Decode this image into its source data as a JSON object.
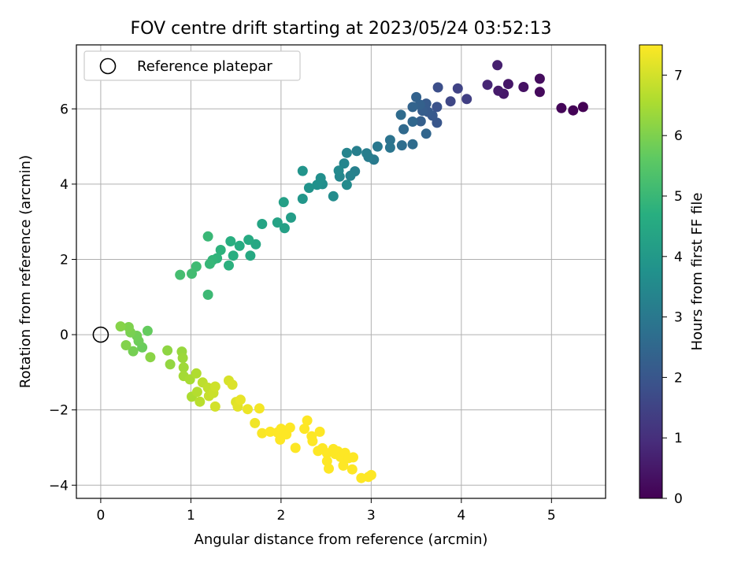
{
  "chart_data": {
    "type": "scatter",
    "title": "FOV centre drift starting at 2023/05/24 03:52:13",
    "xlabel": "Angular distance from reference (arcmin)",
    "ylabel": "Rotation from reference (arcmin)",
    "colorbar_label": "Hours from first FF file",
    "xlim": [
      -0.27,
      5.6
    ],
    "ylim": [
      -4.35,
      7.7
    ],
    "x_ticks": [
      0,
      1,
      2,
      3,
      4,
      5
    ],
    "y_ticks": [
      -4,
      -2,
      0,
      2,
      4,
      6
    ],
    "colorbar_ticks": [
      0,
      1,
      2,
      3,
      4,
      5,
      6,
      7
    ],
    "colorbar_range": [
      0,
      7.5
    ],
    "colormap": "viridis",
    "grid": true,
    "legend": {
      "placement": "top-left",
      "label": "Reference platepar"
    },
    "reference_point": {
      "x": 0,
      "y": 0
    },
    "points": [
      [
        5.35,
        6.05,
        0.0
      ],
      [
        5.24,
        5.96,
        0.05
      ],
      [
        5.11,
        6.02,
        0.1
      ],
      [
        4.87,
        6.45,
        0.2
      ],
      [
        4.87,
        6.8,
        0.25
      ],
      [
        4.69,
        6.58,
        0.35
      ],
      [
        4.52,
        6.66,
        0.45
      ],
      [
        4.47,
        6.4,
        0.5
      ],
      [
        4.41,
        6.48,
        0.55
      ],
      [
        4.4,
        7.16,
        0.65
      ],
      [
        4.29,
        6.64,
        0.8
      ],
      [
        4.06,
        6.26,
        1.4
      ],
      [
        3.96,
        6.54,
        1.5
      ],
      [
        3.88,
        6.2,
        1.6
      ],
      [
        3.74,
        6.57,
        1.8
      ],
      [
        3.73,
        6.05,
        1.9
      ],
      [
        3.73,
        5.63,
        2.0
      ],
      [
        3.68,
        5.82,
        2.05
      ],
      [
        3.63,
        5.92,
        2.1
      ],
      [
        3.61,
        6.14,
        2.15
      ],
      [
        3.57,
        5.95,
        2.2
      ],
      [
        3.55,
        5.67,
        2.25
      ],
      [
        3.54,
        6.11,
        2.3
      ],
      [
        3.5,
        6.31,
        2.35
      ],
      [
        3.46,
        6.05,
        2.4
      ],
      [
        3.61,
        5.34,
        2.45
      ],
      [
        3.46,
        5.66,
        2.5
      ],
      [
        3.36,
        5.46,
        2.55
      ],
      [
        3.33,
        5.84,
        2.6
      ],
      [
        3.46,
        5.06,
        2.65
      ],
      [
        3.34,
        5.03,
        2.7
      ],
      [
        3.21,
        5.17,
        2.85
      ],
      [
        3.21,
        4.97,
        2.9
      ],
      [
        3.07,
        5.0,
        3.0
      ],
      [
        3.03,
        4.65,
        3.05
      ],
      [
        2.97,
        4.72,
        3.1
      ],
      [
        2.95,
        4.82,
        3.15
      ],
      [
        2.84,
        4.88,
        3.2
      ],
      [
        2.82,
        4.34,
        3.25
      ],
      [
        2.77,
        4.22,
        3.3
      ],
      [
        2.73,
        4.83,
        3.35
      ],
      [
        2.7,
        4.55,
        3.4
      ],
      [
        2.65,
        4.2,
        3.45
      ],
      [
        2.64,
        4.36,
        3.5
      ],
      [
        2.73,
        3.98,
        3.55
      ],
      [
        2.58,
        3.68,
        3.6
      ],
      [
        2.46,
        4.0,
        3.65
      ],
      [
        2.44,
        4.16,
        3.7
      ],
      [
        2.4,
        3.98,
        3.75
      ],
      [
        2.31,
        3.9,
        3.8
      ],
      [
        2.24,
        4.35,
        3.85
      ],
      [
        2.24,
        3.61,
        3.9
      ],
      [
        2.11,
        3.11,
        4.15
      ],
      [
        2.03,
        3.52,
        4.2
      ],
      [
        2.04,
        2.83,
        4.25
      ],
      [
        1.96,
        2.98,
        4.3
      ],
      [
        1.79,
        2.94,
        4.35
      ],
      [
        1.72,
        2.4,
        4.45
      ],
      [
        1.66,
        2.1,
        4.5
      ],
      [
        1.64,
        2.52,
        4.55
      ],
      [
        1.54,
        2.36,
        4.6
      ],
      [
        1.47,
        2.1,
        4.65
      ],
      [
        1.44,
        2.48,
        4.7
      ],
      [
        1.42,
        1.84,
        4.75
      ],
      [
        1.33,
        2.25,
        4.8
      ],
      [
        1.29,
        2.03,
        4.85
      ],
      [
        1.24,
        1.98,
        4.9
      ],
      [
        1.21,
        1.88,
        4.95
      ],
      [
        1.19,
        2.61,
        5.0
      ],
      [
        1.19,
        1.06,
        5.05
      ],
      [
        1.06,
        1.81,
        5.1
      ],
      [
        1.01,
        1.62,
        5.15
      ],
      [
        0.88,
        1.59,
        5.2
      ],
      [
        0.52,
        0.1,
        5.7
      ],
      [
        0.46,
        -0.34,
        5.75
      ],
      [
        0.42,
        -0.17,
        5.8
      ],
      [
        0.4,
        -0.03,
        5.85
      ],
      [
        0.36,
        -0.44,
        5.9
      ],
      [
        0.33,
        0.06,
        5.95
      ],
      [
        0.31,
        0.2,
        6.0
      ],
      [
        0.28,
        -0.28,
        6.05
      ],
      [
        0.22,
        0.22,
        6.1
      ],
      [
        0.55,
        -0.6,
        6.15
      ],
      [
        0.74,
        -0.42,
        6.2
      ],
      [
        0.77,
        -0.79,
        6.25
      ],
      [
        0.9,
        -0.45,
        6.3
      ],
      [
        0.91,
        -0.62,
        6.35
      ],
      [
        0.92,
        -0.87,
        6.4
      ],
      [
        0.92,
        -1.1,
        6.45
      ],
      [
        0.99,
        -1.19,
        6.5
      ],
      [
        1.01,
        -1.65,
        6.55
      ],
      [
        1.06,
        -1.03,
        6.6
      ],
      [
        1.07,
        -1.52,
        6.65
      ],
      [
        1.1,
        -1.78,
        6.7
      ],
      [
        1.13,
        -1.27,
        6.75
      ],
      [
        1.19,
        -1.41,
        6.8
      ],
      [
        1.2,
        -1.63,
        6.85
      ],
      [
        1.25,
        -1.55,
        6.9
      ],
      [
        1.27,
        -1.38,
        6.95
      ],
      [
        1.27,
        -1.91,
        7.0
      ],
      [
        1.42,
        -1.22,
        7.05
      ],
      [
        1.46,
        -1.33,
        7.1
      ],
      [
        1.5,
        -1.79,
        7.15
      ],
      [
        1.52,
        -1.91,
        7.2
      ],
      [
        1.55,
        -1.73,
        7.25
      ],
      [
        1.63,
        -1.98,
        7.3
      ],
      [
        1.71,
        -2.35,
        7.35
      ],
      [
        1.76,
        -1.96,
        7.4
      ],
      [
        1.79,
        -2.62,
        7.45
      ],
      [
        1.88,
        -2.58,
        7.5
      ],
      [
        1.96,
        -2.6,
        7.5
      ],
      [
        1.99,
        -2.79,
        7.5
      ],
      [
        2.0,
        -2.5,
        7.5
      ],
      [
        2.06,
        -2.65,
        7.5
      ],
      [
        2.1,
        -2.47,
        7.5
      ],
      [
        2.16,
        -3.01,
        7.5
      ],
      [
        2.26,
        -2.5,
        7.5
      ],
      [
        2.29,
        -2.28,
        7.5
      ],
      [
        2.34,
        -2.7,
        7.5
      ],
      [
        2.35,
        -2.83,
        7.5
      ],
      [
        2.41,
        -3.09,
        7.5
      ],
      [
        2.43,
        -2.58,
        7.5
      ],
      [
        2.46,
        -3.02,
        7.5
      ],
      [
        2.51,
        -3.15,
        7.5
      ],
      [
        2.51,
        -3.36,
        7.5
      ],
      [
        2.53,
        -3.56,
        7.5
      ],
      [
        2.58,
        -3.04,
        7.5
      ],
      [
        2.6,
        -3.17,
        7.5
      ],
      [
        2.63,
        -3.1,
        7.5
      ],
      [
        2.66,
        -3.25,
        7.5
      ],
      [
        2.69,
        -3.48,
        7.5
      ],
      [
        2.71,
        -3.14,
        7.5
      ],
      [
        2.75,
        -3.28,
        7.5
      ],
      [
        2.79,
        -3.58,
        7.5
      ],
      [
        2.8,
        -3.26,
        7.5
      ],
      [
        2.89,
        -3.81,
        7.5
      ],
      [
        2.97,
        -3.78,
        7.5
      ],
      [
        3.0,
        -3.73,
        7.5
      ]
    ]
  }
}
